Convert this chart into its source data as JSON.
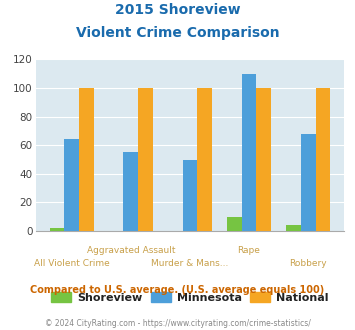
{
  "title_line1": "2015 Shoreview",
  "title_line2": "Violent Crime Comparison",
  "categories": [
    "All Violent Crime",
    "Aggravated Assault",
    "Murder & Mans...",
    "Rape",
    "Robbery"
  ],
  "label_top": [
    "",
    "Aggravated Assault",
    "",
    "Rape",
    ""
  ],
  "label_bottom": [
    "All Violent Crime",
    "",
    "Murder & Mans...",
    "",
    "Robbery"
  ],
  "shoreview": [
    2,
    0,
    0,
    10,
    4
  ],
  "minnesota": [
    64,
    55,
    50,
    110,
    68
  ],
  "national": [
    100,
    100,
    100,
    100,
    100
  ],
  "colors": {
    "shoreview": "#76c442",
    "minnesota": "#4d9fda",
    "national": "#f5a623"
  },
  "ylim": [
    0,
    120
  ],
  "yticks": [
    0,
    20,
    40,
    60,
    80,
    100,
    120
  ],
  "bg_color": "#dce9f0",
  "title_color": "#1a6bad",
  "xlabel_color": "#c8a04a",
  "annotation": "Compared to U.S. average. (U.S. average equals 100)",
  "annotation_color": "#cc6600",
  "footer": "© 2024 CityRating.com - https://www.cityrating.com/crime-statistics/",
  "footer_color": "#888888"
}
